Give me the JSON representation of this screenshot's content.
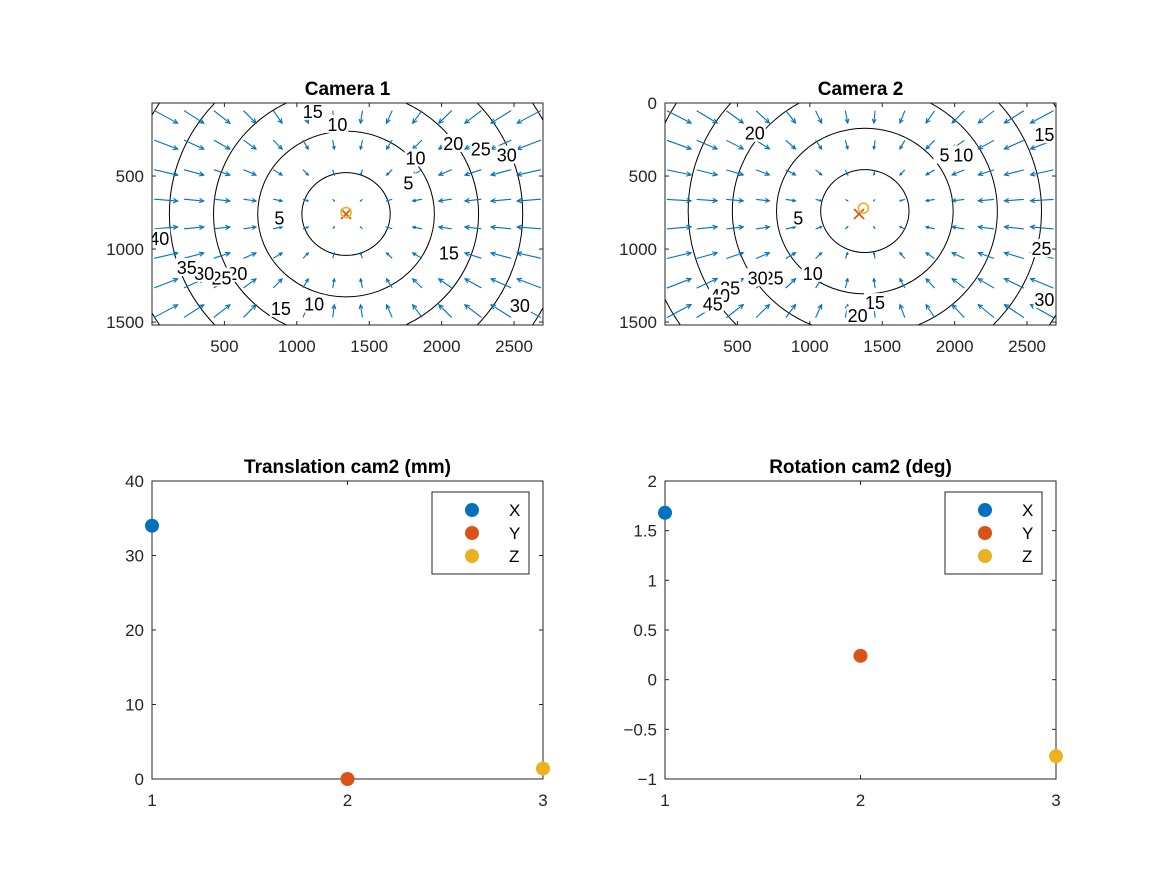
{
  "chart_data": [
    {
      "type": "contour",
      "title": "Camera 1",
      "xlim": [
        0,
        2700
      ],
      "ylim": [
        0,
        1520
      ],
      "y_reversed": true,
      "xticks": [
        500,
        1000,
        1500,
        2000,
        2500
      ],
      "yticks": [
        500,
        1000,
        1500
      ],
      "contour_levels": [
        5,
        10,
        15,
        20,
        25,
        30,
        35,
        40
      ],
      "center": [
        1340,
        760
      ],
      "principal_point_x_marker": [
        1340,
        760
      ],
      "principal_point_o_marker": [
        1340,
        750
      ],
      "contour_labels": [
        {
          "text": "5",
          "x": 1770,
          "y": 550
        },
        {
          "text": "5",
          "x": 880,
          "y": 790
        },
        {
          "text": "10",
          "x": 1280,
          "y": 150
        },
        {
          "text": "10",
          "x": 1820,
          "y": 380
        },
        {
          "text": "10",
          "x": 1120,
          "y": 1380
        },
        {
          "text": "15",
          "x": 1110,
          "y": 60
        },
        {
          "text": "15",
          "x": 2050,
          "y": 1030
        },
        {
          "text": "15",
          "x": 890,
          "y": 1410
        },
        {
          "text": "20",
          "x": 2080,
          "y": 280
        },
        {
          "text": "20",
          "x": 590,
          "y": 1170
        },
        {
          "text": "25",
          "x": 2270,
          "y": 320
        },
        {
          "text": "25",
          "x": 480,
          "y": 1200
        },
        {
          "text": "30",
          "x": 2450,
          "y": 360
        },
        {
          "text": "30",
          "x": 360,
          "y": 1170
        },
        {
          "text": "30",
          "x": 2540,
          "y": 1390
        },
        {
          "text": "35",
          "x": 240,
          "y": 1130
        },
        {
          "text": "40",
          "x": 50,
          "y": 930
        }
      ]
    },
    {
      "type": "contour",
      "title": "Camera 2",
      "xlim": [
        0,
        2700
      ],
      "ylim": [
        0,
        1520
      ],
      "y_reversed": true,
      "xticks": [
        500,
        1000,
        1500,
        2000,
        2500
      ],
      "yticks": [
        0,
        500,
        1000,
        1500
      ],
      "contour_levels": [
        5,
        10,
        15,
        20,
        25,
        30,
        35,
        40,
        45
      ],
      "center": [
        1380,
        740
      ],
      "principal_point_x_marker": [
        1340,
        760
      ],
      "principal_point_o_marker": [
        1370,
        720
      ],
      "contour_labels": [
        {
          "text": "5",
          "x": 1930,
          "y": 360
        },
        {
          "text": "5",
          "x": 920,
          "y": 790
        },
        {
          "text": "10",
          "x": 2060,
          "y": 360
        },
        {
          "text": "10",
          "x": 1020,
          "y": 1170
        },
        {
          "text": "15",
          "x": 2620,
          "y": 220
        },
        {
          "text": "15",
          "x": 1450,
          "y": 1370
        },
        {
          "text": "20",
          "x": 620,
          "y": 210
        },
        {
          "text": "20",
          "x": 1330,
          "y": 1460
        },
        {
          "text": "25",
          "x": 2600,
          "y": 1000
        },
        {
          "text": "25",
          "x": 750,
          "y": 1200
        },
        {
          "text": "30",
          "x": 2620,
          "y": 1350
        },
        {
          "text": "30",
          "x": 640,
          "y": 1200
        },
        {
          "text": "35",
          "x": 450,
          "y": 1270
        },
        {
          "text": "40",
          "x": 380,
          "y": 1320
        },
        {
          "text": "45",
          "x": 330,
          "y": 1380
        }
      ]
    },
    {
      "type": "scatter",
      "title": "Translation cam2 (mm)",
      "xlim": [
        1,
        3
      ],
      "ylim": [
        0,
        40
      ],
      "xticks": [
        1,
        2,
        3
      ],
      "yticks": [
        0,
        10,
        20,
        30,
        40
      ],
      "legend": "top-right",
      "series": [
        {
          "name": "X",
          "x": [
            1
          ],
          "y": [
            34
          ],
          "color": "#0072BD"
        },
        {
          "name": "Y",
          "x": [
            2
          ],
          "y": [
            0
          ],
          "color": "#D95319"
        },
        {
          "name": "Z",
          "x": [
            3
          ],
          "y": [
            1.4
          ],
          "color": "#EDB120"
        }
      ]
    },
    {
      "type": "scatter",
      "title": "Rotation cam2 (deg)",
      "xlim": [
        1,
        3
      ],
      "ylim": [
        -1,
        2
      ],
      "xticks": [
        1,
        2,
        3
      ],
      "yticks": [
        -1,
        -0.5,
        0,
        0.5,
        1,
        1.5,
        2
      ],
      "legend": "top-right",
      "series": [
        {
          "name": "X",
          "x": [
            1
          ],
          "y": [
            1.68
          ],
          "color": "#0072BD"
        },
        {
          "name": "Y",
          "x": [
            2
          ],
          "y": [
            0.24
          ],
          "color": "#D95319"
        },
        {
          "name": "Z",
          "x": [
            3
          ],
          "y": [
            -0.77
          ],
          "color": "#EDB120"
        }
      ]
    }
  ],
  "colors": {
    "quiver": "#0072BD",
    "contour": "#000000",
    "x_marker": "#D95319",
    "o_marker": "#EDB120"
  }
}
